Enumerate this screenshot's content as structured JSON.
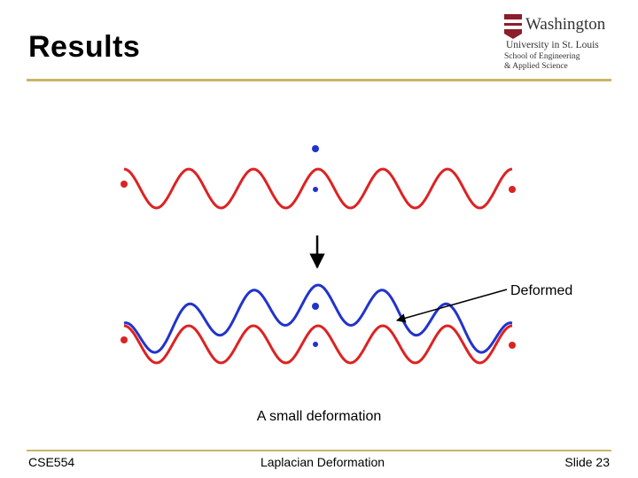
{
  "slide": {
    "title": "Results",
    "caption": "A small deformation",
    "annotation": "Deformed"
  },
  "logo": {
    "line1": "Washington",
    "line2": "University in St. Louis",
    "line3": "School of Engineering",
    "line4": "& Applied Science"
  },
  "footer": {
    "course": "CSE554",
    "topic": "Laplacian Deformation",
    "slide_number": "Slide 23"
  },
  "colors": {
    "original_curve": "#dd2222",
    "deformed_curve": "#2233cc",
    "rule": "#c8b569"
  }
}
